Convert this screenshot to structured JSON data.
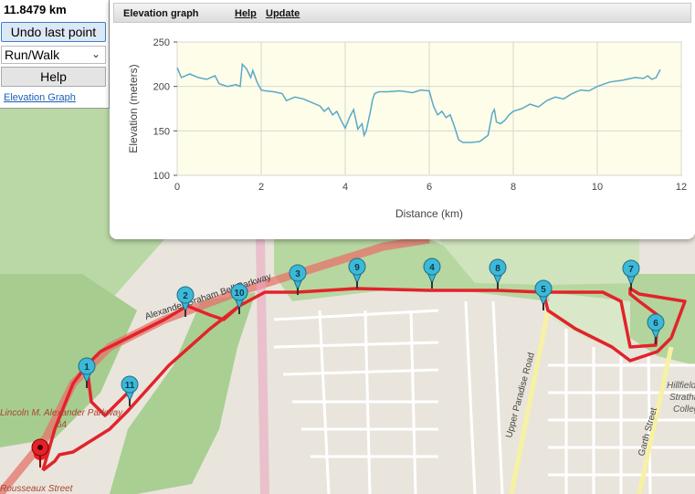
{
  "controls": {
    "distance": "11.8479 km",
    "undo_label": "Undo last point",
    "mode_value": "Run/Walk",
    "help_label": "Help",
    "elevation_link": "Elevation Graph"
  },
  "elevation_panel": {
    "title": "Elevation graph",
    "help_link": "Help",
    "update_link": "Update"
  },
  "chart_data": {
    "type": "line",
    "xlabel": "Distance (km)",
    "ylabel": "Elevation (meters)",
    "xlim": [
      0,
      12
    ],
    "ylim": [
      100,
      250
    ],
    "x_ticks": [
      "0",
      "2",
      "4",
      "6",
      "8",
      "10",
      "12"
    ],
    "y_ticks": [
      "100",
      "150",
      "200",
      "250"
    ],
    "grid": true,
    "line_color": "#5aa9c7",
    "x": [
      0,
      0.1,
      0.3,
      0.5,
      0.7,
      0.9,
      1.0,
      1.2,
      1.4,
      1.5,
      1.55,
      1.65,
      1.75,
      1.8,
      1.9,
      2.0,
      2.1,
      2.3,
      2.5,
      2.6,
      2.8,
      3.0,
      3.2,
      3.4,
      3.5,
      3.6,
      3.7,
      3.8,
      3.9,
      4.0,
      4.1,
      4.2,
      4.3,
      4.4,
      4.45,
      4.5,
      4.6,
      4.65,
      4.7,
      4.8,
      5.0,
      5.3,
      5.6,
      5.8,
      6.0,
      6.1,
      6.2,
      6.3,
      6.4,
      6.5,
      6.6,
      6.7,
      6.8,
      7.0,
      7.2,
      7.4,
      7.5,
      7.55,
      7.6,
      7.7,
      7.8,
      7.9,
      8.0,
      8.2,
      8.4,
      8.6,
      8.8,
      9.0,
      9.2,
      9.4,
      9.6,
      9.8,
      10.0,
      10.3,
      10.6,
      10.9,
      11.1,
      11.2,
      11.3,
      11.4,
      11.5
    ],
    "y": [
      221,
      210,
      214,
      210,
      208,
      212,
      203,
      200,
      202,
      200,
      225,
      220,
      210,
      218,
      205,
      196,
      195,
      194,
      192,
      184,
      188,
      186,
      182,
      178,
      172,
      176,
      168,
      172,
      162,
      153,
      165,
      174,
      152,
      158,
      145,
      150,
      172,
      185,
      192,
      194,
      194,
      195,
      193,
      196,
      195,
      178,
      168,
      172,
      165,
      168,
      155,
      140,
      137,
      137,
      138,
      145,
      170,
      174,
      160,
      158,
      162,
      168,
      172,
      175,
      180,
      177,
      184,
      188,
      186,
      192,
      196,
      195,
      200,
      205,
      207,
      210,
      209,
      212,
      208,
      210,
      219
    ]
  },
  "map": {
    "road_labels": [
      "Alexander Graham Bell Parkway",
      "Lincoln M. Alexander Parkway",
      "64",
      "Upper Paradise Road",
      "Garth Street",
      "Rousseaux Street"
    ],
    "place_labels": [
      "Hillfield",
      "Strathallan",
      "College"
    ],
    "waypoints": [
      "1",
      "2",
      "3",
      "4",
      "5",
      "6",
      "7",
      "8",
      "9",
      "10",
      "11"
    ]
  }
}
